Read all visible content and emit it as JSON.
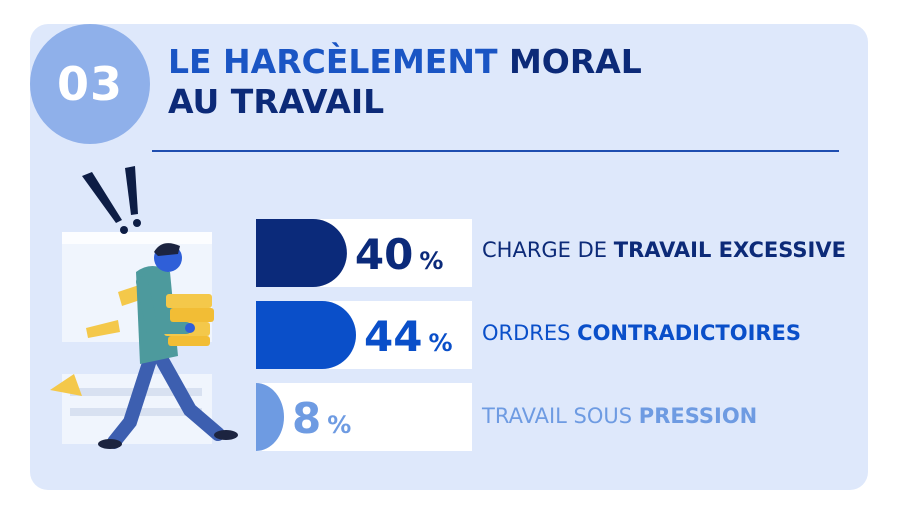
{
  "badge": {
    "number": "03"
  },
  "title": {
    "line1_plain": "LE HARCÈLEMENT ",
    "line1_bold": "MORAL",
    "line2_bold": "AU TRAVAIL"
  },
  "colors": {
    "card_bg": "#dee8fb",
    "circle": "#8fb0ea",
    "title_plain": "#1a55c4",
    "title_bold": "#0c2a78",
    "row_dark": "#0b2a7a",
    "row_mid": "#0a4fc9",
    "row_light": "#6e9be2"
  },
  "chart_data": {
    "type": "bar",
    "categories": [
      "CHARGE DE TRAVAIL EXCESSIVE",
      "ORDRES CONTRADICTOIRES",
      "TRAVAIL SOUS PRESSION"
    ],
    "values": [
      40,
      44,
      8
    ],
    "unit": "%"
  },
  "rows": [
    {
      "pct": "40",
      "unit": "%",
      "label_plain": "CHARGE DE ",
      "label_bold": "TRAVAIL EXCESSIVE",
      "color": "#0b2a7a"
    },
    {
      "pct": "44",
      "unit": "%",
      "label_plain": "ORDRES ",
      "label_bold": "CONTRADICTOIRES",
      "color": "#0a4fc9"
    },
    {
      "pct": "8",
      "unit": "%",
      "label_plain": "TRAVAIL SOUS ",
      "label_bold": "PRESSION",
      "color": "#6e9be2"
    }
  ]
}
